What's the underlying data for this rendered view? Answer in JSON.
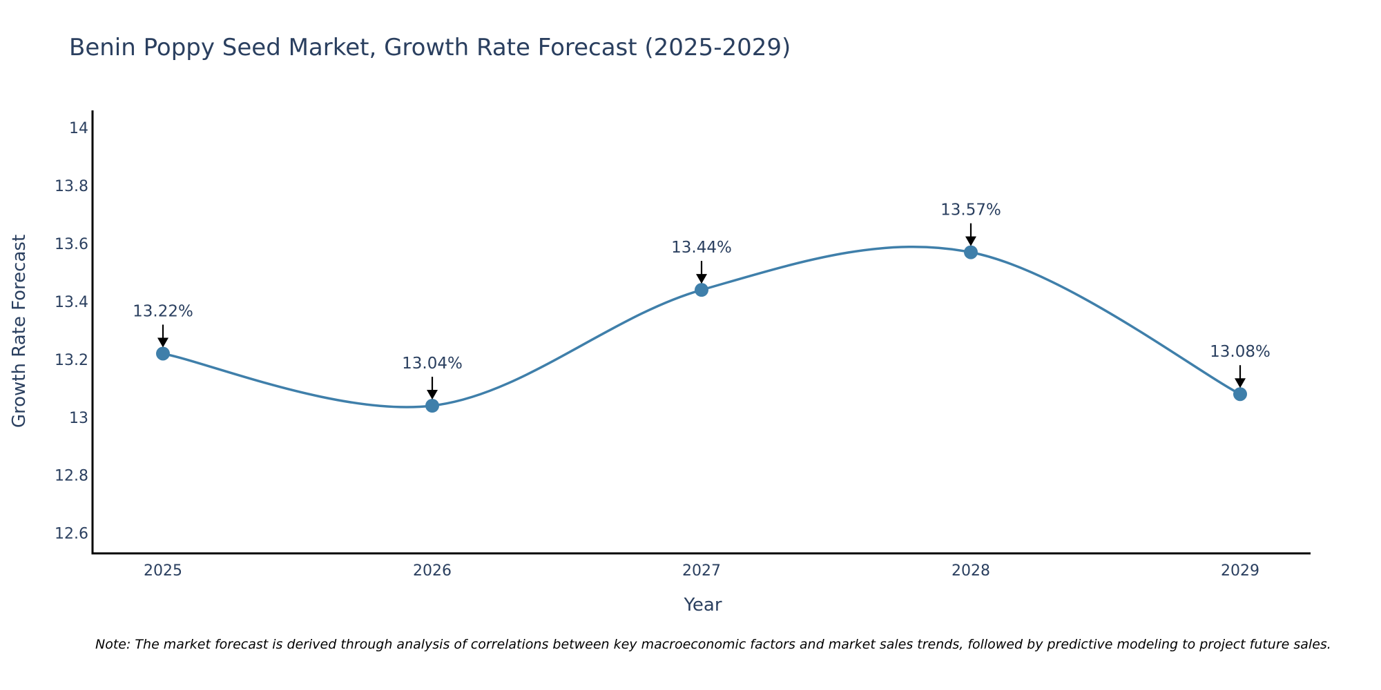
{
  "chart_data": {
    "type": "line",
    "title": "Benin Poppy Seed Market, Growth Rate Forecast (2025-2029)",
    "xlabel": "Year",
    "ylabel": "Growth Rate Forecast",
    "categories": [
      "2025",
      "2026",
      "2027",
      "2028",
      "2029"
    ],
    "values": [
      13.22,
      13.04,
      13.44,
      13.57,
      13.08
    ],
    "data_labels": [
      "13.22%",
      "13.04%",
      "13.44%",
      "13.57%",
      "13.08%"
    ],
    "ylim": [
      12.53,
      14.06
    ],
    "yticks": [
      12.6,
      12.8,
      13,
      13.2,
      13.4,
      13.6,
      13.8,
      14
    ],
    "ytick_labels": [
      "12.6",
      "12.8",
      "13",
      "13.2",
      "13.4",
      "13.6",
      "13.8",
      "14"
    ],
    "grid": false,
    "line_shape": "spline",
    "note": "Note: The market forecast is derived through analysis of correlations between key macroeconomic factors and market sales trends, followed by predictive modeling to project future sales."
  },
  "colors": {
    "line": "#3f7faa",
    "marker": "#3f7faa",
    "text": "#2a3f5f",
    "axis": "#000000"
  }
}
